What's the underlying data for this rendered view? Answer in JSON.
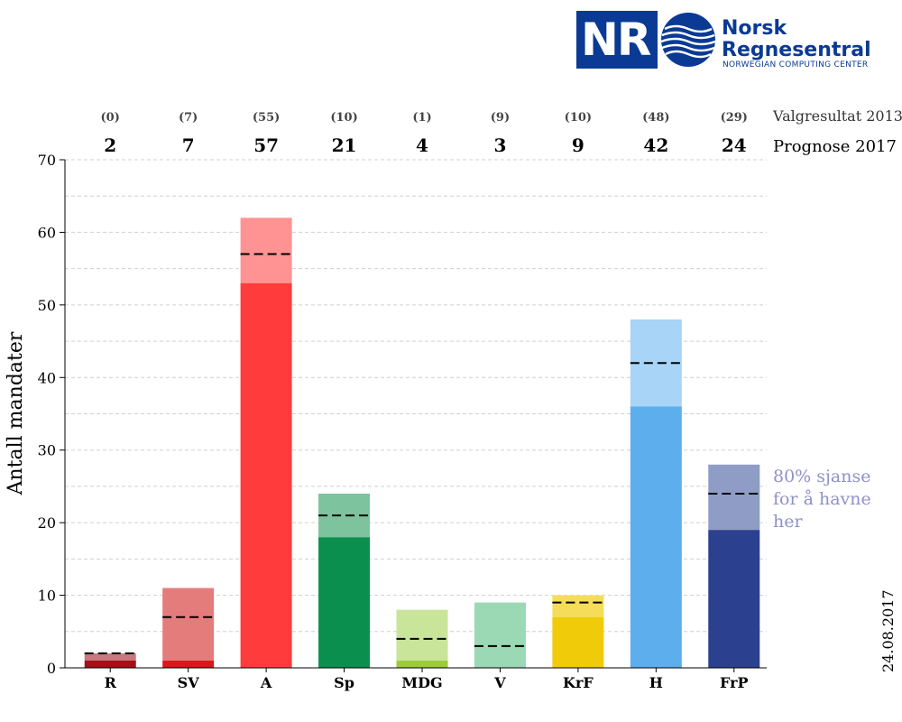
{
  "logo": {
    "initials": "NR",
    "name_line1": "Norsk",
    "name_line2": "Regnesentral",
    "subtitle": "NORWEGIAN COMPUTING CENTER",
    "color": "#0b3a94"
  },
  "date": "24.08.2017",
  "annotation": "80% sjanse for å havne her",
  "chart_data": {
    "type": "bar",
    "ylabel": "Antall mandater",
    "ylim": [
      0,
      70
    ],
    "yticks": [
      0,
      10,
      20,
      30,
      40,
      50,
      60,
      70
    ],
    "grid": true,
    "row_labels": {
      "previous": "Valgresultat 2013",
      "forecast": "Prognose 2017"
    },
    "categories": [
      "R",
      "SV",
      "A",
      "Sp",
      "MDG",
      "V",
      "KrF",
      "H",
      "FrP"
    ],
    "result_2013": [
      "(0)",
      "(7)",
      "(55)",
      "(10)",
      "(1)",
      "(9)",
      "(10)",
      "(48)",
      "(29)"
    ],
    "forecast_2017": [
      2,
      7,
      57,
      21,
      4,
      3,
      9,
      42,
      24
    ],
    "interval_low": [
      1,
      1,
      53,
      18,
      1,
      0,
      7,
      36,
      19
    ],
    "interval_high": [
      2,
      11,
      62,
      24,
      8,
      9,
      10,
      48,
      28
    ],
    "colors_dark": [
      "#a50f15",
      "#d7191c",
      "#ff3b3b",
      "#0b8f4f",
      "#9ccc3c",
      "#9ad9b4",
      "#f0cb0a",
      "#5daeec",
      "#2b408e"
    ],
    "colors_light": [
      "#c9787d",
      "#e57c7c",
      "#ff9393",
      "#7cc39e",
      "#c9e59a",
      "#9ad9b4",
      "#f5dd5a",
      "#a8d4f7",
      "#8f9cc6"
    ]
  }
}
